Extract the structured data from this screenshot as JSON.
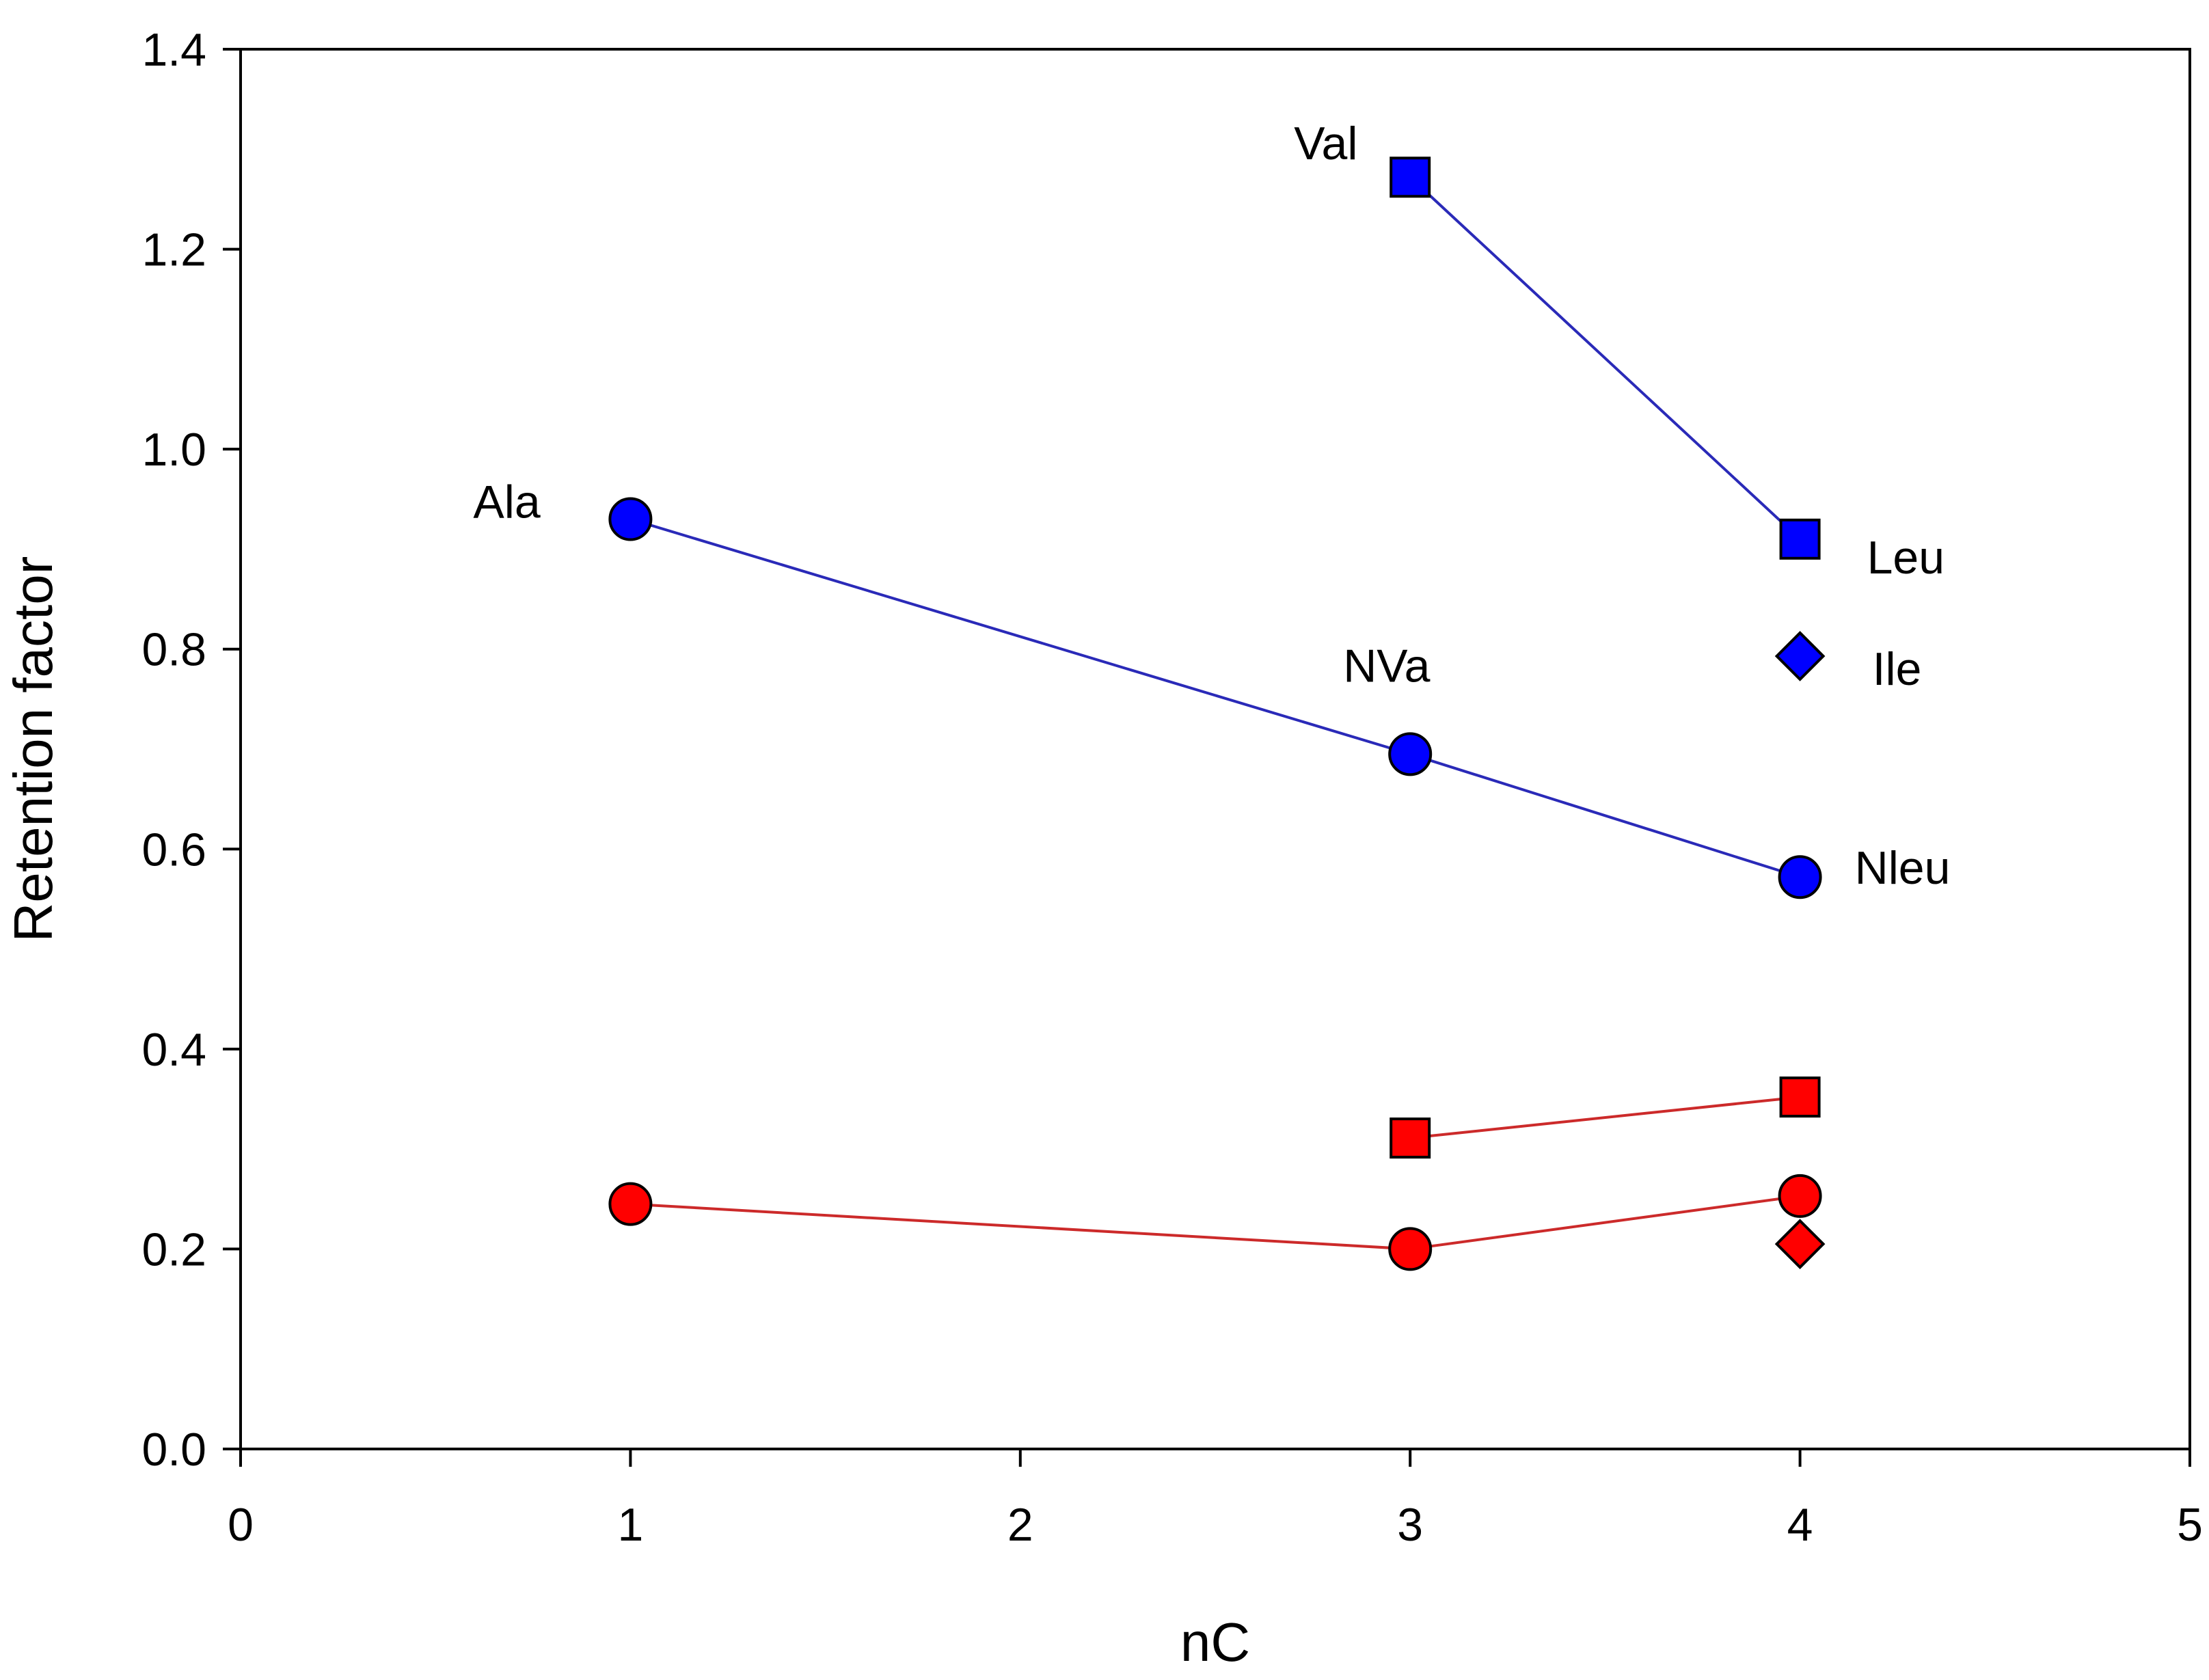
{
  "chart_data": {
    "type": "scatter",
    "title": "",
    "xlabel": "nC",
    "ylabel": "Retention factor",
    "xlim": [
      0,
      5
    ],
    "ylim": [
      0,
      1.4
    ],
    "xticks": [
      "0",
      "1",
      "2",
      "3",
      "4",
      "5"
    ],
    "yticks": [
      "0.0",
      "0.2",
      "0.4",
      "0.6",
      "0.8",
      "1.0",
      "1.2",
      "1.4"
    ],
    "grid": false,
    "colors": {
      "blue": "#0000ff",
      "blue_line": "#2a2ab8",
      "red": "#ff0000",
      "red_line": "#cc2a2a"
    },
    "series": [
      {
        "name": "blue circles",
        "color": "#0000ff",
        "marker": "circle",
        "connected": true,
        "points": [
          {
            "x": 1,
            "y": 0.93
          },
          {
            "x": 3,
            "y": 0.695
          },
          {
            "x": 4,
            "y": 0.572
          }
        ]
      },
      {
        "name": "blue squares",
        "color": "#0000ff",
        "marker": "square",
        "connected": true,
        "points": [
          {
            "x": 3,
            "y": 1.272
          },
          {
            "x": 4,
            "y": 0.91
          }
        ]
      },
      {
        "name": "blue diamond",
        "color": "#0000ff",
        "marker": "diamond",
        "connected": false,
        "points": [
          {
            "x": 4,
            "y": 0.793
          }
        ]
      },
      {
        "name": "red circles",
        "color": "#ff0000",
        "marker": "circle",
        "connected": true,
        "points": [
          {
            "x": 1,
            "y": 0.245
          },
          {
            "x": 3,
            "y": 0.2
          },
          {
            "x": 4,
            "y": 0.253
          }
        ]
      },
      {
        "name": "red squares",
        "color": "#ff0000",
        "marker": "square",
        "connected": true,
        "points": [
          {
            "x": 3,
            "y": 0.311
          },
          {
            "x": 4,
            "y": 0.352
          }
        ]
      },
      {
        "name": "red diamond",
        "color": "#ff0000",
        "marker": "diamond",
        "connected": false,
        "points": [
          {
            "x": 4,
            "y": 0.205
          }
        ]
      }
    ],
    "annotations": [
      {
        "text": "Val",
        "x": 3,
        "y": 1.272
      },
      {
        "text": "Ala",
        "x": 1,
        "y": 0.93
      },
      {
        "text": "NVa",
        "x": 3,
        "y": 0.695
      },
      {
        "text": "Leu",
        "x": 4,
        "y": 0.91
      },
      {
        "text": "Ile",
        "x": 4,
        "y": 0.793
      },
      {
        "text": "Nleu",
        "x": 4,
        "y": 0.572
      }
    ]
  }
}
